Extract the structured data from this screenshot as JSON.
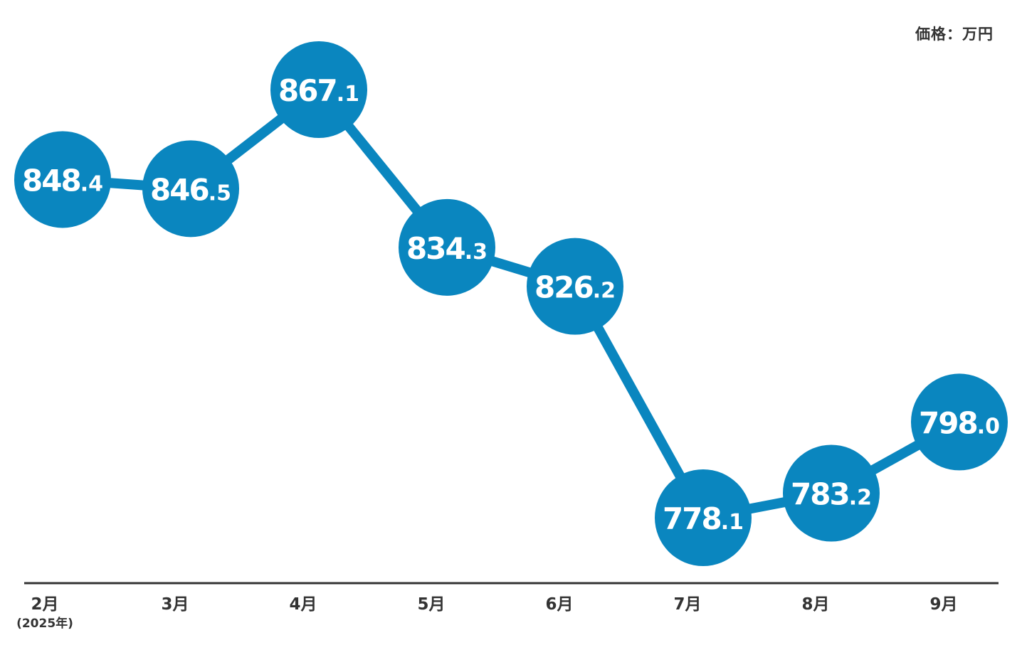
{
  "unit_label": "価格：万円",
  "chart_data": {
    "type": "line",
    "categories": [
      "2月",
      "3月",
      "4月",
      "5月",
      "6月",
      "7月",
      "8月",
      "9月"
    ],
    "category_sublabels": [
      "(2025年)",
      "",
      "",
      "",
      "",
      "",
      "",
      ""
    ],
    "series": [
      {
        "values": [
          848.4,
          846.5,
          867.1,
          834.3,
          826.2,
          778.1,
          783.2,
          798.0
        ]
      }
    ],
    "value_labels_int": [
      "848",
      "846",
      "867",
      "834",
      "826",
      "778",
      "783",
      "798"
    ],
    "value_labels_dec": [
      ".4",
      ".5",
      ".1",
      ".3",
      ".2",
      ".1",
      ".2",
      ".0"
    ],
    "colors": {
      "series": "#0a86bf",
      "axis": "#333333",
      "label": "#ffffff",
      "tick": "#333333"
    },
    "grid": false
  }
}
